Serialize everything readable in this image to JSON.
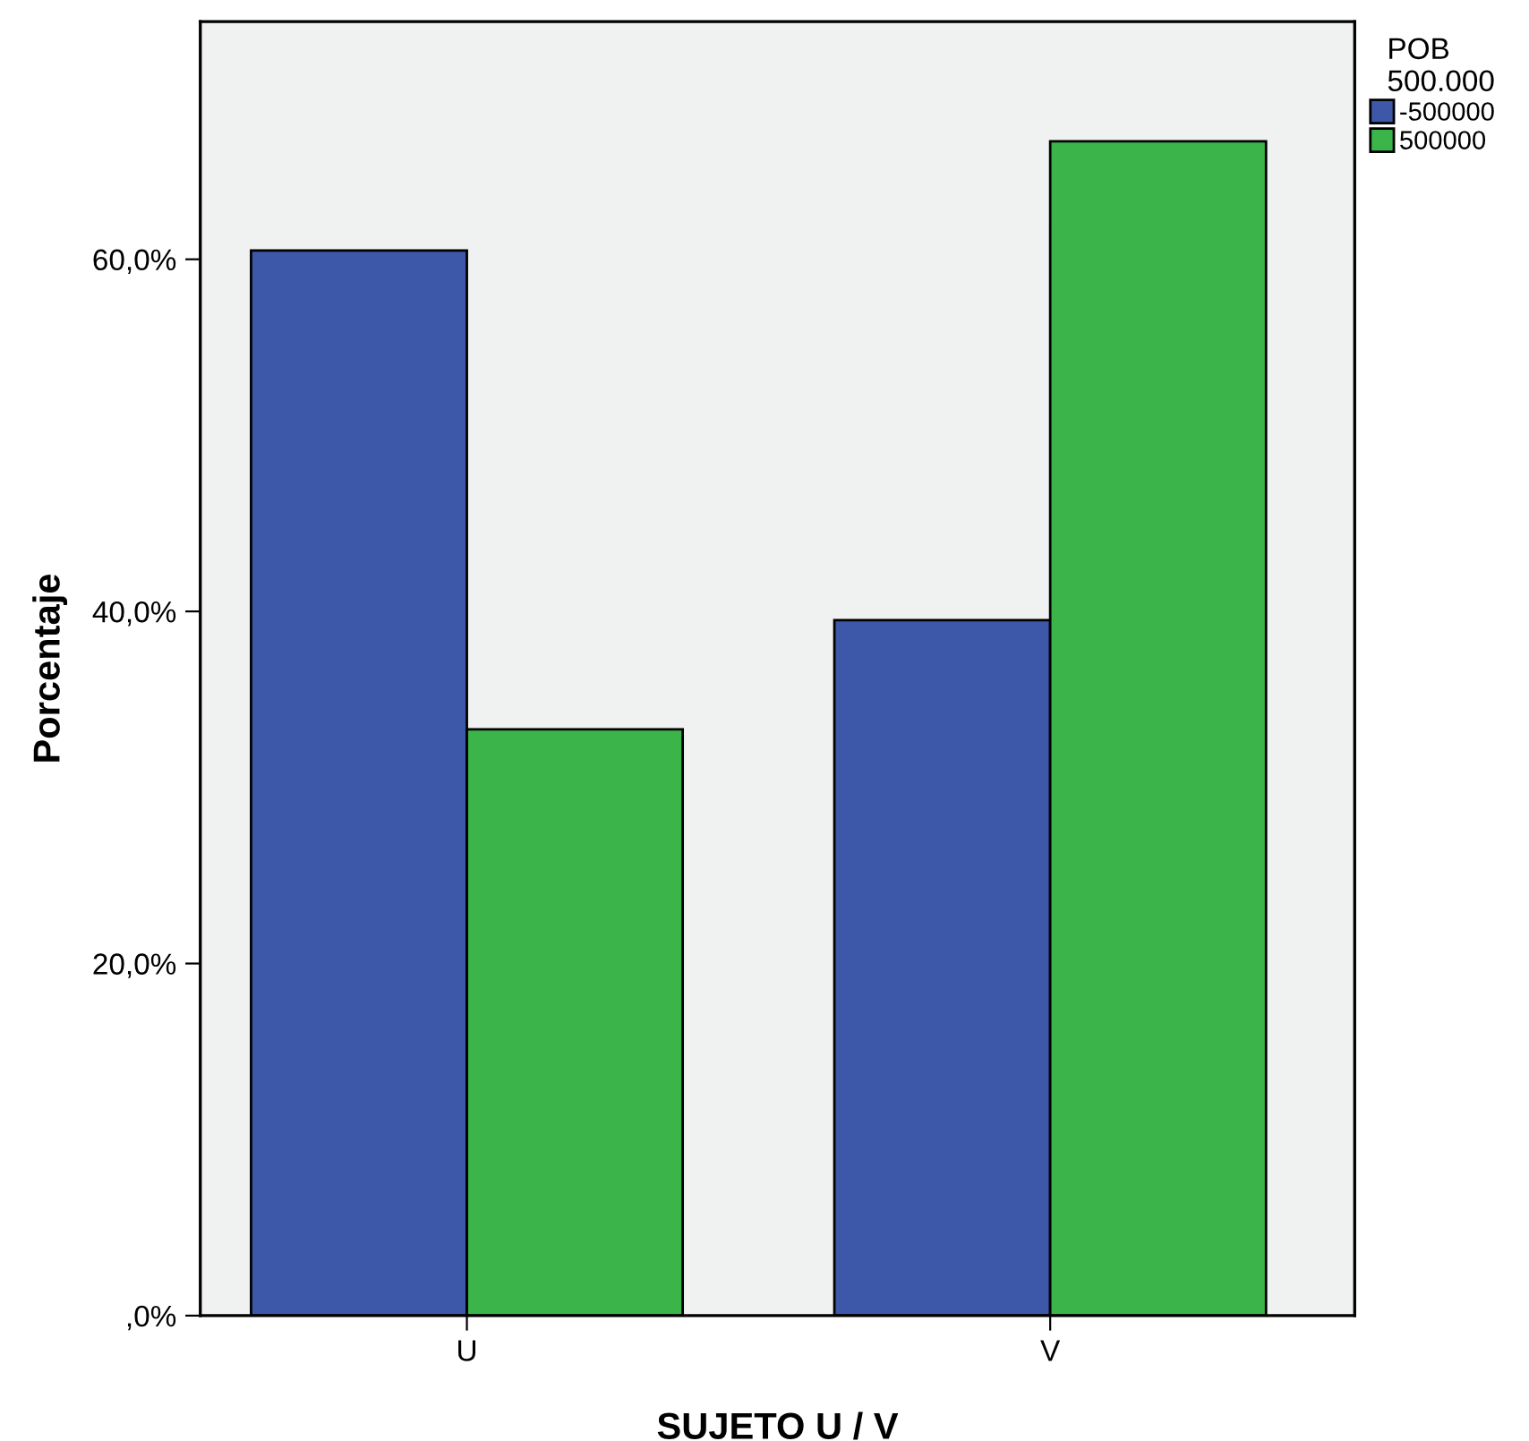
{
  "chart_data": {
    "type": "bar",
    "xlabel": "SUJETO U / V",
    "ylabel": "Porcentaje",
    "legend_title": "POB\n500.000",
    "categories": [
      "U",
      "V"
    ],
    "series": [
      {
        "name": "-500000",
        "color": "#3d58a8",
        "values": [
          60.5,
          39.5
        ]
      },
      {
        "name": "500000",
        "color": "#3bb44a",
        "values": [
          33.3,
          66.7
        ]
      }
    ],
    "ylim": [
      0,
      73.5
    ],
    "yticks": [
      {
        "value": 0,
        "label": ",0%"
      },
      {
        "value": 20,
        "label": "20,0%"
      },
      {
        "value": 40,
        "label": "40,0%"
      },
      {
        "value": 60,
        "label": "60,0%"
      }
    ],
    "grid": false,
    "legend": "top right"
  }
}
